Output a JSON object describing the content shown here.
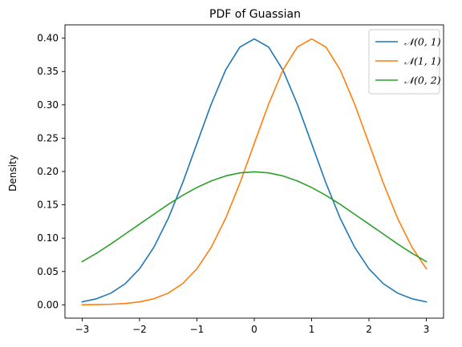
{
  "chart_data": {
    "type": "line",
    "title": "PDF of Guassian",
    "xlabel": "",
    "ylabel": "Density",
    "xlim": [
      -3.3,
      3.3
    ],
    "ylim": [
      -0.02,
      0.42
    ],
    "xticks": [
      -3,
      -2,
      -1,
      0,
      1,
      2,
      3
    ],
    "xtick_labels": [
      "−3",
      "−2",
      "−1",
      "0",
      "1",
      "2",
      "3"
    ],
    "yticks": [
      0.0,
      0.05,
      0.1,
      0.15,
      0.2,
      0.25,
      0.3,
      0.35,
      0.4
    ],
    "ytick_labels": [
      "0.00",
      "0.05",
      "0.10",
      "0.15",
      "0.20",
      "0.25",
      "0.30",
      "0.35",
      "0.40"
    ],
    "grid": false,
    "legend_position": "top-right",
    "series": [
      {
        "name": "𝒩(0, 1)",
        "color": "#1f77b4",
        "x": [
          -3.0,
          -2.75,
          -2.5,
          -2.25,
          -2.0,
          -1.75,
          -1.5,
          -1.25,
          -1.0,
          -0.75,
          -0.5,
          -0.25,
          0.0,
          0.25,
          0.5,
          0.75,
          1.0,
          1.25,
          1.5,
          1.75,
          2.0,
          2.25,
          2.5,
          2.75,
          3.0
        ],
        "y": [
          0.0044,
          0.0091,
          0.0175,
          0.0317,
          0.054,
          0.0863,
          0.1295,
          0.1826,
          0.242,
          0.3011,
          0.3521,
          0.3867,
          0.3989,
          0.3867,
          0.3521,
          0.3011,
          0.242,
          0.1826,
          0.1295,
          0.0863,
          0.054,
          0.0317,
          0.0175,
          0.0091,
          0.0044
        ]
      },
      {
        "name": "𝒩(1, 1)",
        "color": "#ff7f0e",
        "x": [
          -3.0,
          -2.75,
          -2.5,
          -2.25,
          -2.0,
          -1.75,
          -1.5,
          -1.25,
          -1.0,
          -0.75,
          -0.5,
          -0.25,
          0.0,
          0.25,
          0.5,
          0.75,
          1.0,
          1.25,
          1.5,
          1.75,
          2.0,
          2.25,
          2.5,
          2.75,
          3.0
        ],
        "y": [
          0.0001,
          0.0004,
          0.0009,
          0.002,
          0.0044,
          0.0091,
          0.0175,
          0.0317,
          0.054,
          0.0863,
          0.1295,
          0.1826,
          0.242,
          0.3011,
          0.3521,
          0.3867,
          0.3989,
          0.3867,
          0.3521,
          0.3011,
          0.242,
          0.1826,
          0.1295,
          0.0863,
          0.054
        ]
      },
      {
        "name": "𝒩(0, 2)",
        "color": "#2ca02c",
        "x": [
          -3.0,
          -2.75,
          -2.5,
          -2.25,
          -2.0,
          -1.75,
          -1.5,
          -1.25,
          -1.0,
          -0.75,
          -0.5,
          -0.25,
          0.0,
          0.25,
          0.5,
          0.75,
          1.0,
          1.25,
          1.5,
          1.75,
          2.0,
          2.25,
          2.5,
          2.75,
          3.0
        ],
        "y": [
          0.0648,
          0.0773,
          0.0913,
          0.1062,
          0.121,
          0.1358,
          0.1506,
          0.1642,
          0.176,
          0.1859,
          0.1933,
          0.198,
          0.1995,
          0.198,
          0.1933,
          0.1859,
          0.176,
          0.1642,
          0.1506,
          0.1358,
          0.121,
          0.1062,
          0.0913,
          0.0773,
          0.0648
        ]
      }
    ]
  }
}
